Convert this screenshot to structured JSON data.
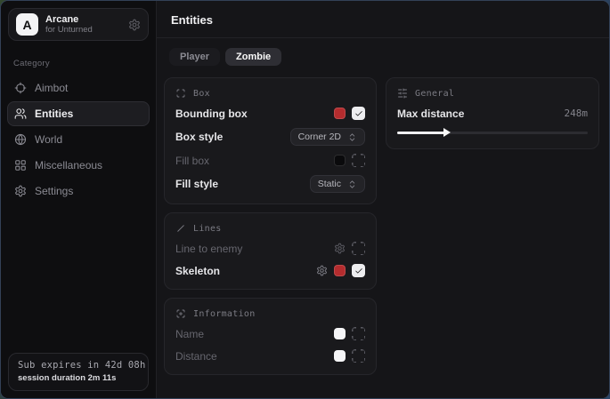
{
  "sidebar": {
    "logo_letter": "A",
    "app_name": "Arcane",
    "app_subtitle": "for Unturned",
    "category_label": "Category",
    "items": [
      {
        "label": "Aimbot",
        "icon": "crosshair-icon",
        "active": false
      },
      {
        "label": "Entities",
        "icon": "entities-icon",
        "active": true
      },
      {
        "label": "World",
        "icon": "globe-icon",
        "active": false
      },
      {
        "label": "Miscellaneous",
        "icon": "grid-icon",
        "active": false
      },
      {
        "label": "Settings",
        "icon": "gear-icon",
        "active": false
      }
    ],
    "subscription": {
      "line1": "Sub expires in 42d 08h",
      "line2": "session duration 2m 11s"
    }
  },
  "main": {
    "title": "Entities",
    "tabs": [
      {
        "label": "Player",
        "active": false
      },
      {
        "label": "Zombie",
        "active": true
      }
    ],
    "columns": [
      {
        "side": "left",
        "cards": [
          {
            "title": "Box",
            "icon": "scan-box-icon",
            "rows": [
              {
                "label": "Bounding box",
                "enabled": true,
                "controls": [
                  {
                    "type": "swatch",
                    "color": "#b42c2e"
                  },
                  {
                    "type": "checkbox",
                    "checked": true
                  }
                ]
              },
              {
                "label": "Box style",
                "enabled": true,
                "controls": [
                  {
                    "type": "select",
                    "value": "Corner 2D"
                  }
                ]
              },
              {
                "label": "Fill box",
                "enabled": false,
                "controls": [
                  {
                    "type": "swatch",
                    "color": "#0a0a0c"
                  },
                  {
                    "type": "checkbox",
                    "checked": false
                  }
                ]
              },
              {
                "label": "Fill style",
                "enabled": true,
                "controls": [
                  {
                    "type": "select",
                    "value": "Static"
                  }
                ]
              }
            ]
          },
          {
            "title": "Lines",
            "icon": "line-icon",
            "rows": [
              {
                "label": "Line to enemy",
                "enabled": false,
                "controls": [
                  {
                    "type": "icon-button",
                    "icon": "gear-icon"
                  },
                  {
                    "type": "checkbox",
                    "checked": false
                  }
                ]
              },
              {
                "label": "Skeleton",
                "enabled": true,
                "controls": [
                  {
                    "type": "icon-button",
                    "icon": "gear-icon"
                  },
                  {
                    "type": "swatch",
                    "color": "#b42c2e"
                  },
                  {
                    "type": "checkbox",
                    "checked": true
                  }
                ]
              }
            ]
          },
          {
            "title": "Information",
            "icon": "scan-info-icon",
            "rows": [
              {
                "label": "Name",
                "enabled": false,
                "controls": [
                  {
                    "type": "swatch",
                    "color": "#f5f5f7"
                  },
                  {
                    "type": "checkbox",
                    "checked": false
                  }
                ]
              },
              {
                "label": "Distance",
                "enabled": false,
                "controls": [
                  {
                    "type": "swatch",
                    "color": "#f5f5f7"
                  },
                  {
                    "type": "checkbox",
                    "checked": false
                  }
                ]
              }
            ]
          }
        ]
      },
      {
        "side": "right",
        "cards": [
          {
            "title": "General",
            "icon": "sliders-icon",
            "rows": [
              {
                "label": "Max distance",
                "enabled": true,
                "controls": [
                  {
                    "type": "value",
                    "value": "248m"
                  }
                ],
                "slider": {
                  "percent": 25
                }
              }
            ]
          }
        ]
      }
    ]
  },
  "colors": {
    "accent_red": "#b42c2e",
    "checkbox_checked_bg": "#ededef",
    "sidebar_bg": "#0e0e10",
    "main_bg": "#151518",
    "card_bg": "#19191c"
  }
}
